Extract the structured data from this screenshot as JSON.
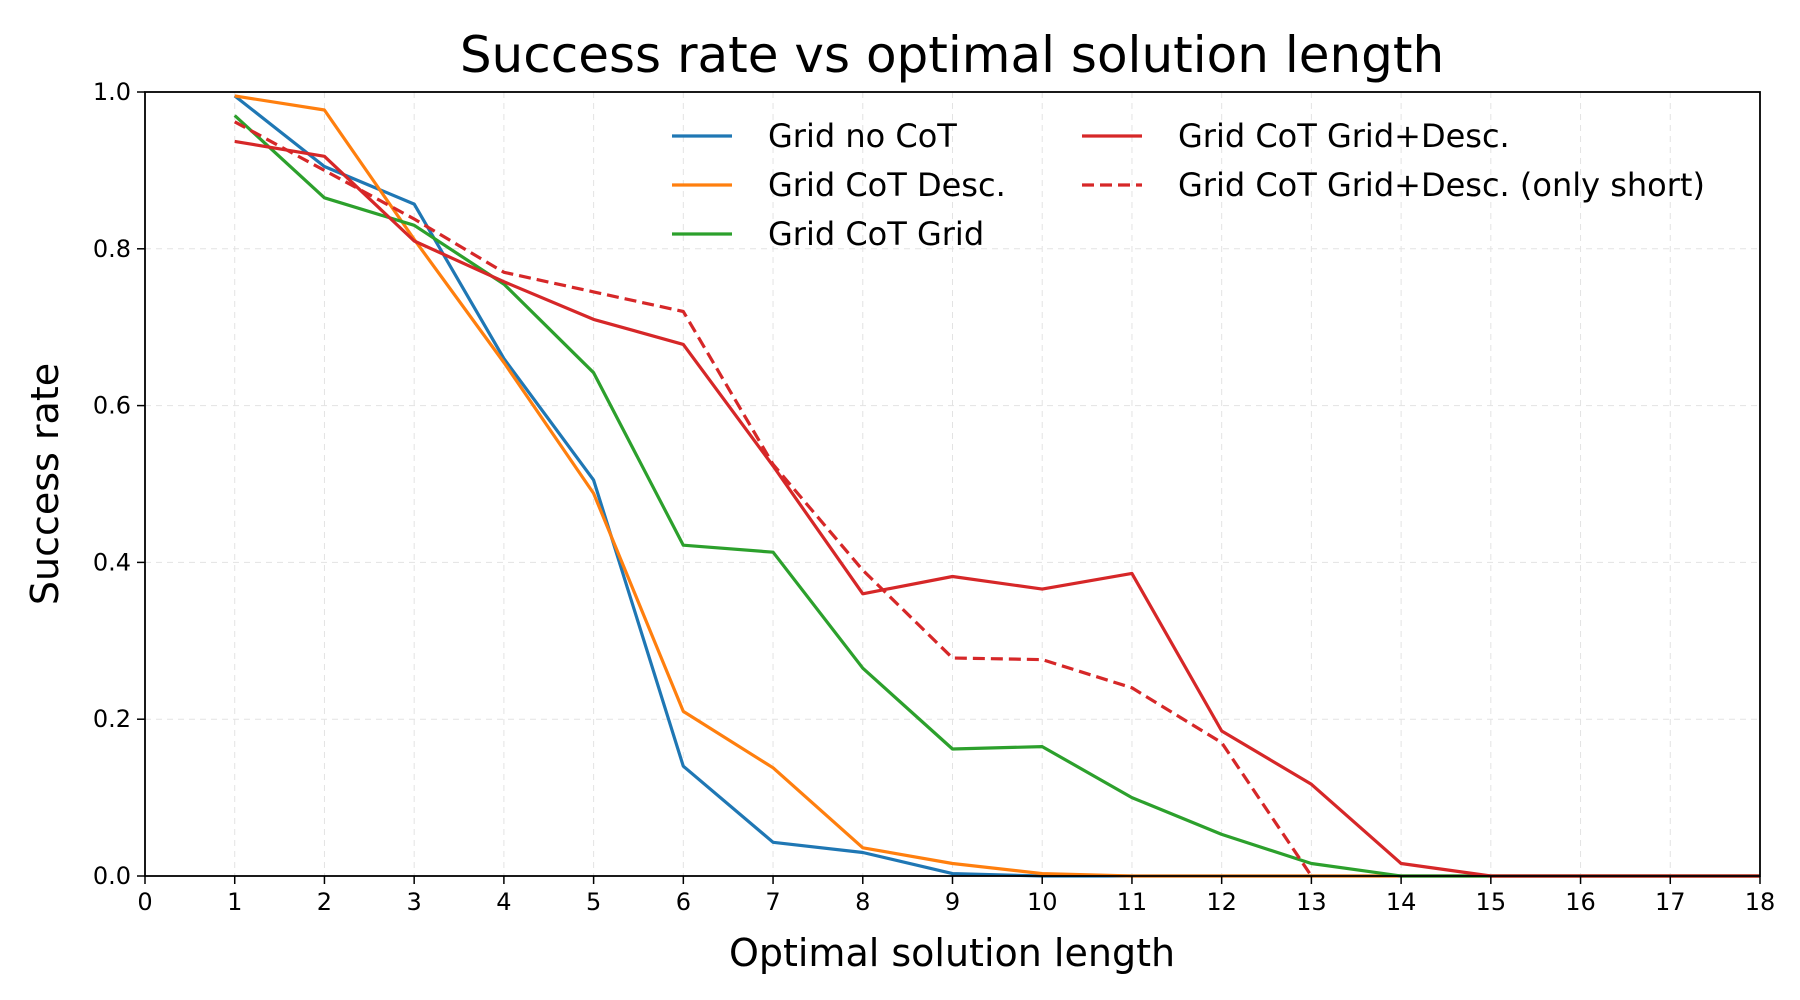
{
  "chart_data": {
    "type": "line",
    "title": "Success rate vs optimal solution length",
    "xlabel": "Optimal solution length",
    "ylabel": "Success rate",
    "xlim": [
      0,
      18
    ],
    "ylim": [
      0,
      1.0
    ],
    "xticks": [
      0,
      1,
      2,
      3,
      4,
      5,
      6,
      7,
      8,
      9,
      10,
      11,
      12,
      13,
      14,
      15,
      16,
      17,
      18
    ],
    "xtick_labels": [
      "0",
      "1",
      "2",
      "3",
      "4",
      "5",
      "6",
      "7",
      "8",
      "9",
      "10",
      "11",
      "12",
      "13",
      "14",
      "15",
      "16",
      "17",
      "18"
    ],
    "yticks": [
      0.0,
      0.2,
      0.4,
      0.6,
      0.8,
      1.0
    ],
    "ytick_labels": [
      "0.0",
      "0.2",
      "0.4",
      "0.6",
      "0.8",
      "1.0"
    ],
    "grid": true,
    "legend_position": "top-right",
    "series": [
      {
        "name": "Grid no CoT",
        "color": "#1f77b4",
        "style": "solid",
        "x": [
          1,
          2,
          3,
          4,
          5,
          6,
          7,
          8,
          9,
          10,
          11,
          12,
          13,
          14,
          15,
          16,
          17,
          18
        ],
        "y": [
          0.995,
          0.905,
          0.857,
          0.66,
          0.505,
          0.14,
          0.043,
          0.03,
          0.003,
          0.0,
          0.0,
          0.0,
          0.0,
          0.0,
          0.0,
          0.0,
          0.0,
          0.0
        ]
      },
      {
        "name": "Grid CoT Desc.",
        "color": "#ff7f0e",
        "style": "solid",
        "x": [
          1,
          2,
          3,
          4,
          5,
          6,
          7,
          8,
          9,
          10,
          11,
          12,
          13,
          14,
          15,
          16,
          17,
          18
        ],
        "y": [
          0.995,
          0.977,
          0.812,
          0.655,
          0.488,
          0.21,
          0.138,
          0.036,
          0.016,
          0.003,
          0.0,
          0.0,
          0.0,
          0.0,
          0.0,
          0.0,
          0.0,
          0.0
        ]
      },
      {
        "name": "Grid CoT Grid",
        "color": "#2ca02c",
        "style": "solid",
        "x": [
          1,
          2,
          3,
          4,
          5,
          6,
          7,
          8,
          9,
          10,
          11,
          12,
          13,
          14,
          15,
          16,
          17,
          18
        ],
        "y": [
          0.97,
          0.865,
          0.83,
          0.755,
          0.642,
          0.422,
          0.413,
          0.265,
          0.162,
          0.165,
          0.1,
          0.053,
          0.016,
          0.0,
          0.0,
          0.0,
          0.0,
          0.0
        ]
      },
      {
        "name": "Grid CoT Grid+Desc.",
        "color": "#d62728",
        "style": "solid",
        "x": [
          1,
          2,
          3,
          4,
          5,
          6,
          7,
          8,
          9,
          10,
          11,
          12,
          13,
          14,
          15,
          16,
          17,
          18
        ],
        "y": [
          0.937,
          0.918,
          0.81,
          0.758,
          0.71,
          0.678,
          0.523,
          0.36,
          0.382,
          0.366,
          0.386,
          0.185,
          0.117,
          0.016,
          0.0,
          0.0,
          0.0,
          0.0
        ]
      },
      {
        "name": "Grid CoT Grid+Desc. (only short)",
        "color": "#d62728",
        "style": "dashed",
        "x": [
          1,
          2,
          3,
          4,
          5,
          6,
          7,
          8,
          9,
          10,
          11,
          12,
          13
        ],
        "y": [
          0.962,
          0.9,
          0.838,
          0.77,
          0.745,
          0.72,
          0.525,
          0.39,
          0.278,
          0.276,
          0.24,
          0.17,
          0.0
        ]
      }
    ]
  }
}
